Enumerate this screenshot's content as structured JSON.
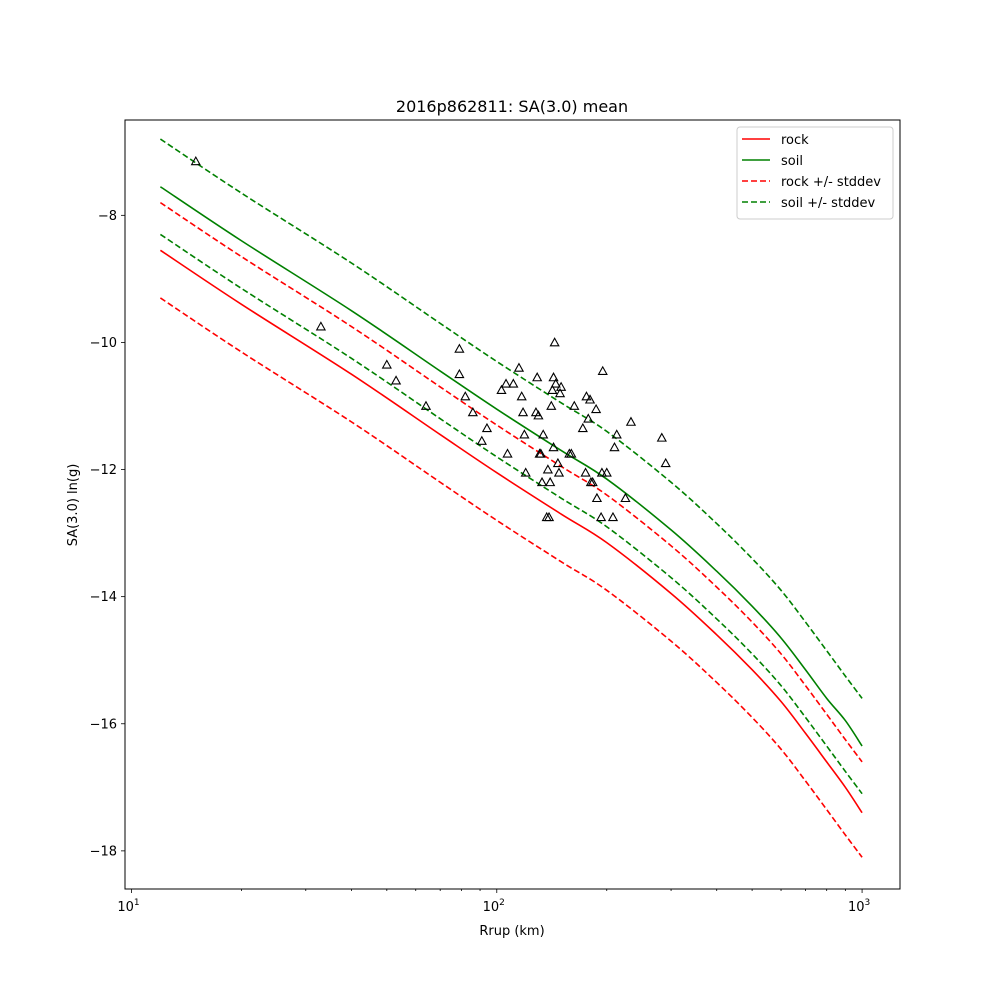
{
  "chart_data": {
    "type": "line",
    "title": "2016p862811: SA(3.0) mean",
    "xlabel": "Rrup (km)",
    "ylabel": "SA(3.0) ln(g)",
    "xscale": "log",
    "xlim": [
      9.6,
      1270
    ],
    "ylim": [
      -18.6,
      -6.5
    ],
    "xticks": [
      10,
      100,
      1000
    ],
    "xtick_labels": [
      "10",
      "10",
      "10"
    ],
    "xtick_exponents": [
      "1",
      "2",
      "3"
    ],
    "yticks": [
      -8,
      -10,
      -12,
      -14,
      -16,
      -18
    ],
    "ytick_labels": [
      "−8",
      "−10",
      "−12",
      "−14",
      "−16",
      "−18"
    ],
    "grid": false,
    "legend_position": "top-right",
    "series": [
      {
        "name": "rock",
        "color": "#ff0000",
        "style": "solid",
        "x": [
          12,
          20,
          40,
          70,
          100,
          150,
          200,
          300,
          400,
          500,
          600,
          700,
          800,
          900,
          1000
        ],
        "y": [
          -8.55,
          -9.4,
          -10.5,
          -11.45,
          -12.05,
          -12.7,
          -13.15,
          -13.95,
          -14.6,
          -15.15,
          -15.65,
          -16.15,
          -16.6,
          -17.0,
          -17.4
        ]
      },
      {
        "name": "soil",
        "color": "#008000",
        "style": "solid",
        "x": [
          12,
          20,
          40,
          70,
          100,
          150,
          200,
          300,
          400,
          500,
          600,
          700,
          800,
          900,
          1000
        ],
        "y": [
          -7.55,
          -8.4,
          -9.5,
          -10.45,
          -11.05,
          -11.7,
          -12.15,
          -12.95,
          -13.6,
          -14.15,
          -14.65,
          -15.15,
          -15.6,
          -15.95,
          -16.35
        ]
      },
      {
        "name": "rock +/- stddev",
        "color": "#ff0000",
        "style": "dashed",
        "x": [
          12,
          20,
          40,
          70,
          100,
          150,
          200,
          300,
          400,
          500,
          600,
          700,
          800,
          900,
          1000
        ],
        "y": [
          -7.8,
          -8.65,
          -9.75,
          -10.7,
          -11.3,
          -11.95,
          -12.4,
          -13.2,
          -13.85,
          -14.4,
          -14.9,
          -15.4,
          -15.85,
          -16.25,
          -16.6
        ]
      },
      {
        "name": "",
        "color": "#ff0000",
        "style": "dashed",
        "x": [
          12,
          20,
          40,
          70,
          100,
          150,
          200,
          300,
          400,
          500,
          600,
          700,
          800,
          900,
          1000
        ],
        "y": [
          -9.3,
          -10.15,
          -11.25,
          -12.2,
          -12.8,
          -13.45,
          -13.9,
          -14.7,
          -15.35,
          -15.9,
          -16.4,
          -16.9,
          -17.35,
          -17.75,
          -18.1
        ]
      },
      {
        "name": "soil +/- stddev",
        "color": "#008000",
        "style": "dashed",
        "x": [
          12,
          20,
          40,
          70,
          100,
          150,
          200,
          300,
          400,
          500,
          600,
          700,
          800,
          900,
          1000
        ],
        "y": [
          -6.8,
          -7.65,
          -8.75,
          -9.7,
          -10.3,
          -10.95,
          -11.4,
          -12.2,
          -12.85,
          -13.4,
          -13.9,
          -14.4,
          -14.85,
          -15.25,
          -15.6
        ]
      },
      {
        "name": "",
        "color": "#008000",
        "style": "dashed",
        "x": [
          12,
          20,
          40,
          70,
          100,
          150,
          200,
          300,
          400,
          500,
          600,
          700,
          800,
          900,
          1000
        ],
        "y": [
          -8.3,
          -9.15,
          -10.25,
          -11.2,
          -11.8,
          -12.45,
          -12.9,
          -13.7,
          -14.35,
          -14.9,
          -15.4,
          -15.9,
          -16.35,
          -16.75,
          -17.1
        ]
      }
    ],
    "scatter": {
      "marker": "triangle",
      "color": "#000000",
      "points": [
        [
          15,
          -7.15
        ],
        [
          33,
          -9.75
        ],
        [
          50,
          -10.35
        ],
        [
          53,
          -10.6
        ],
        [
          64,
          -11.0
        ],
        [
          79,
          -10.1
        ],
        [
          79,
          -10.5
        ],
        [
          82,
          -10.85
        ],
        [
          86,
          -11.1
        ],
        [
          91,
          -11.55
        ],
        [
          94,
          -11.35
        ],
        [
          103,
          -10.75
        ],
        [
          106,
          -10.65
        ],
        [
          107,
          -11.75
        ],
        [
          111,
          -10.65
        ],
        [
          115,
          -10.4
        ],
        [
          117,
          -10.85
        ],
        [
          118,
          -11.1
        ],
        [
          119,
          -11.45
        ],
        [
          120,
          -12.05
        ],
        [
          128,
          -11.1
        ],
        [
          129,
          -10.55
        ],
        [
          130,
          -11.15
        ],
        [
          131,
          -11.75
        ],
        [
          132,
          -11.75
        ],
        [
          133,
          -12.2
        ],
        [
          134,
          -11.45
        ],
        [
          137,
          -12.75
        ],
        [
          138,
          -12.0
        ],
        [
          139,
          -12.75
        ],
        [
          140,
          -12.2
        ],
        [
          141,
          -11.0
        ],
        [
          142,
          -10.75
        ],
        [
          143,
          -10.55
        ],
        [
          143,
          -11.65
        ],
        [
          144,
          -10.0
        ],
        [
          145,
          -10.65
        ],
        [
          147,
          -11.9
        ],
        [
          148,
          -12.05
        ],
        [
          149,
          -10.8
        ],
        [
          150,
          -10.7
        ],
        [
          158,
          -11.75
        ],
        [
          160,
          -11.75
        ],
        [
          163,
          -11.0
        ],
        [
          172,
          -11.35
        ],
        [
          175,
          -12.05
        ],
        [
          176,
          -10.85
        ],
        [
          178,
          -11.2
        ],
        [
          180,
          -10.9
        ],
        [
          181,
          -12.2
        ],
        [
          183,
          -12.2
        ],
        [
          187,
          -11.05
        ],
        [
          188,
          -12.45
        ],
        [
          193,
          -12.75
        ],
        [
          194,
          -12.05
        ],
        [
          195,
          -10.45
        ],
        [
          200,
          -12.05
        ],
        [
          208,
          -12.75
        ],
        [
          210,
          -11.65
        ],
        [
          213,
          -11.45
        ],
        [
          225,
          -12.45
        ],
        [
          233,
          -11.25
        ],
        [
          283,
          -11.5
        ],
        [
          290,
          -11.9
        ]
      ]
    }
  }
}
